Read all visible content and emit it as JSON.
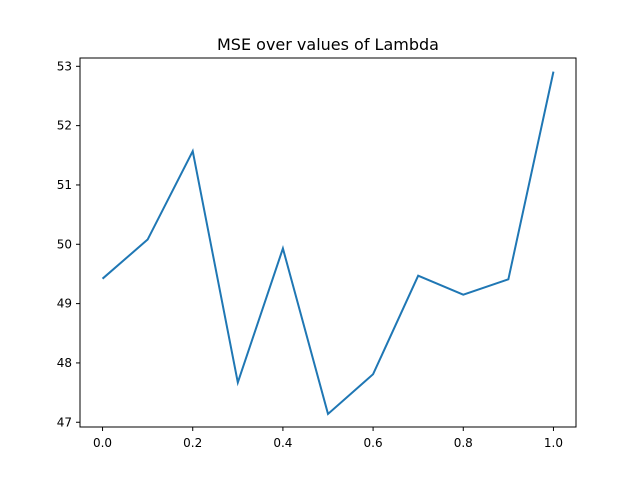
{
  "chart_data": {
    "type": "line",
    "title": "MSE over values of Lambda",
    "xlabel": "",
    "ylabel": "",
    "x": [
      0.0,
      0.1,
      0.2,
      0.3,
      0.4,
      0.5,
      0.6,
      0.7,
      0.8,
      0.9,
      1.0
    ],
    "series": [
      {
        "values": [
          49.42,
          50.08,
          51.57,
          47.67,
          49.93,
          47.14,
          47.81,
          49.47,
          49.15,
          49.41,
          52.91
        ],
        "color": "#1f77b4"
      }
    ],
    "xlim": [
      -0.05,
      1.05
    ],
    "ylim": [
      46.92,
      53.14
    ],
    "x_ticks": [
      0.0,
      0.2,
      0.4,
      0.6,
      0.8,
      1.0
    ],
    "x_tick_labels": [
      "0.0",
      "0.2",
      "0.4",
      "0.6",
      "0.8",
      "1.0"
    ],
    "y_ticks": [
      47,
      48,
      49,
      50,
      51,
      52,
      53
    ],
    "y_tick_labels": [
      "47",
      "48",
      "49",
      "50",
      "51",
      "52",
      "53"
    ],
    "grid": false,
    "legend": "none"
  }
}
